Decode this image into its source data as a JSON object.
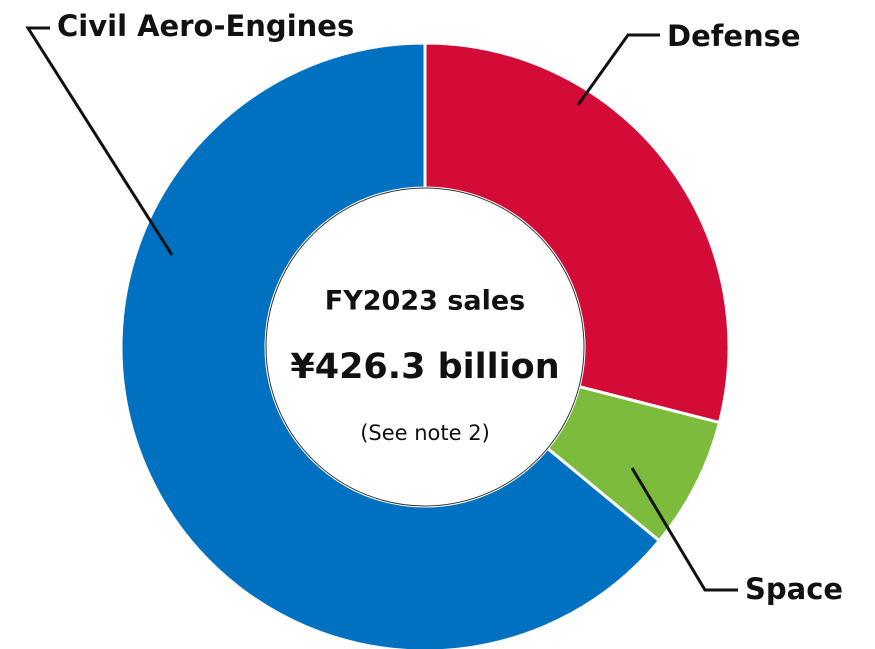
{
  "chart_data": {
    "type": "donut",
    "categories": [
      "Defense",
      "Space",
      "Civil Aero-Engines"
    ],
    "values": [
      29,
      7,
      64
    ],
    "colors": [
      "#d50b37",
      "#7dbb3c",
      "#0071c0"
    ],
    "center_text": [
      "FY2023 sales",
      "¥426.3 billion",
      "(See note 2)"
    ]
  }
}
